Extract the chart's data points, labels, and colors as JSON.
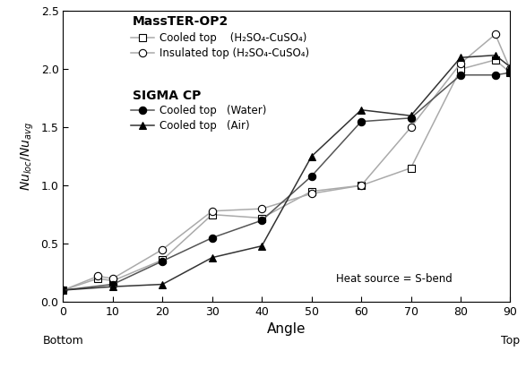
{
  "title": "",
  "xlabel": "Angle",
  "ylabel": "$Nu_{loc}/Nu_{avg}$",
  "xlim": [
    0,
    90
  ],
  "ylim": [
    0.0,
    2.5
  ],
  "xticks": [
    0,
    10,
    20,
    30,
    40,
    50,
    60,
    70,
    80,
    90
  ],
  "yticks": [
    0.0,
    0.5,
    1.0,
    1.5,
    2.0,
    2.5
  ],
  "annotation": "Heat source = S-bend",
  "x_bottom_label": "Bottom",
  "x_top_label": "Top",
  "series": [
    {
      "label": "Cooled top    (H₂SO₄-CuSO₄)",
      "group": "MassTER-OP2",
      "x": [
        0,
        7,
        10,
        20,
        30,
        40,
        50,
        60,
        70,
        80,
        87,
        90
      ],
      "y": [
        0.1,
        0.2,
        0.18,
        0.36,
        0.75,
        0.72,
        0.95,
        1.0,
        1.15,
        2.0,
        2.08,
        1.97
      ],
      "marker": "s",
      "marker_fill": "white",
      "marker_edge": "black",
      "line_color": "#aaaaaa",
      "line_style": "-",
      "markersize": 6
    },
    {
      "label": "Insulated top (H₂SO₄-CuSO₄)",
      "group": "MassTER-OP2",
      "x": [
        0,
        7,
        10,
        20,
        30,
        40,
        50,
        60,
        70,
        80,
        87,
        90
      ],
      "y": [
        0.1,
        0.22,
        0.2,
        0.45,
        0.78,
        0.8,
        0.93,
        1.0,
        1.5,
        2.05,
        2.3,
        2.0
      ],
      "marker": "o",
      "marker_fill": "white",
      "marker_edge": "black",
      "line_color": "#aaaaaa",
      "line_style": "-",
      "markersize": 6
    },
    {
      "label": "Cooled top   (Water)",
      "group": "SIGMA CP",
      "x": [
        0,
        10,
        20,
        30,
        40,
        50,
        60,
        70,
        80,
        87,
        90
      ],
      "y": [
        0.1,
        0.15,
        0.35,
        0.55,
        0.7,
        1.08,
        1.55,
        1.58,
        1.95,
        1.95,
        1.97
      ],
      "marker": "o",
      "marker_fill": "black",
      "marker_edge": "black",
      "line_color": "#555555",
      "line_style": "-",
      "markersize": 6
    },
    {
      "label": "Cooled top   (Air)",
      "group": "SIGMA CP",
      "x": [
        0,
        10,
        20,
        30,
        40,
        50,
        60,
        70,
        80,
        87,
        90
      ],
      "y": [
        0.1,
        0.13,
        0.15,
        0.38,
        0.48,
        1.25,
        1.65,
        1.6,
        2.1,
        2.12,
        2.02
      ],
      "marker": "^",
      "marker_fill": "black",
      "marker_edge": "black",
      "line_color": "#333333",
      "line_style": "-",
      "markersize": 6
    }
  ],
  "legend_title_1": "MassTER-OP2",
  "legend_title_2": "SIGMA CP",
  "background_color": "#ffffff"
}
